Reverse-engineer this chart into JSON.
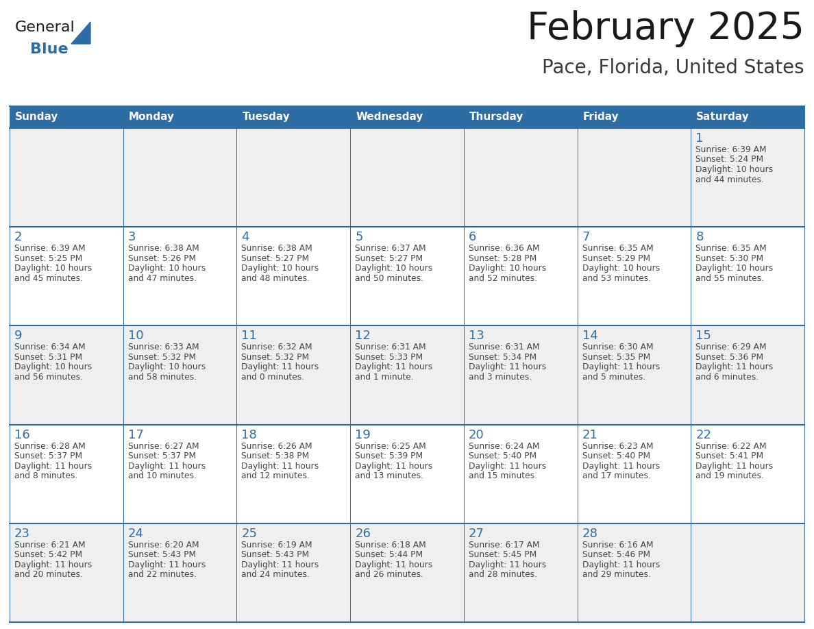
{
  "title": "February 2025",
  "subtitle": "Pace, Florida, United States",
  "days_of_week": [
    "Sunday",
    "Monday",
    "Tuesday",
    "Wednesday",
    "Thursday",
    "Friday",
    "Saturday"
  ],
  "header_bg": "#2E6DA4",
  "header_text": "#FFFFFF",
  "cell_bg_odd": "#EFEFEF",
  "cell_bg_even": "#FFFFFF",
  "day_num_color": "#2E6DA4",
  "text_color": "#444444",
  "line_color": "#2E6DA4",
  "weeks": [
    [
      {
        "day": null,
        "sunrise": null,
        "sunset": null,
        "dl1": null,
        "dl2": null
      },
      {
        "day": null,
        "sunrise": null,
        "sunset": null,
        "dl1": null,
        "dl2": null
      },
      {
        "day": null,
        "sunrise": null,
        "sunset": null,
        "dl1": null,
        "dl2": null
      },
      {
        "day": null,
        "sunrise": null,
        "sunset": null,
        "dl1": null,
        "dl2": null
      },
      {
        "day": null,
        "sunrise": null,
        "sunset": null,
        "dl1": null,
        "dl2": null
      },
      {
        "day": null,
        "sunrise": null,
        "sunset": null,
        "dl1": null,
        "dl2": null
      },
      {
        "day": 1,
        "sunrise": "6:39 AM",
        "sunset": "5:24 PM",
        "dl1": "Daylight: 10 hours",
        "dl2": "and 44 minutes."
      }
    ],
    [
      {
        "day": 2,
        "sunrise": "6:39 AM",
        "sunset": "5:25 PM",
        "dl1": "Daylight: 10 hours",
        "dl2": "and 45 minutes."
      },
      {
        "day": 3,
        "sunrise": "6:38 AM",
        "sunset": "5:26 PM",
        "dl1": "Daylight: 10 hours",
        "dl2": "and 47 minutes."
      },
      {
        "day": 4,
        "sunrise": "6:38 AM",
        "sunset": "5:27 PM",
        "dl1": "Daylight: 10 hours",
        "dl2": "and 48 minutes."
      },
      {
        "day": 5,
        "sunrise": "6:37 AM",
        "sunset": "5:27 PM",
        "dl1": "Daylight: 10 hours",
        "dl2": "and 50 minutes."
      },
      {
        "day": 6,
        "sunrise": "6:36 AM",
        "sunset": "5:28 PM",
        "dl1": "Daylight: 10 hours",
        "dl2": "and 52 minutes."
      },
      {
        "day": 7,
        "sunrise": "6:35 AM",
        "sunset": "5:29 PM",
        "dl1": "Daylight: 10 hours",
        "dl2": "and 53 minutes."
      },
      {
        "day": 8,
        "sunrise": "6:35 AM",
        "sunset": "5:30 PM",
        "dl1": "Daylight: 10 hours",
        "dl2": "and 55 minutes."
      }
    ],
    [
      {
        "day": 9,
        "sunrise": "6:34 AM",
        "sunset": "5:31 PM",
        "dl1": "Daylight: 10 hours",
        "dl2": "and 56 minutes."
      },
      {
        "day": 10,
        "sunrise": "6:33 AM",
        "sunset": "5:32 PM",
        "dl1": "Daylight: 10 hours",
        "dl2": "and 58 minutes."
      },
      {
        "day": 11,
        "sunrise": "6:32 AM",
        "sunset": "5:32 PM",
        "dl1": "Daylight: 11 hours",
        "dl2": "and 0 minutes."
      },
      {
        "day": 12,
        "sunrise": "6:31 AM",
        "sunset": "5:33 PM",
        "dl1": "Daylight: 11 hours",
        "dl2": "and 1 minute."
      },
      {
        "day": 13,
        "sunrise": "6:31 AM",
        "sunset": "5:34 PM",
        "dl1": "Daylight: 11 hours",
        "dl2": "and 3 minutes."
      },
      {
        "day": 14,
        "sunrise": "6:30 AM",
        "sunset": "5:35 PM",
        "dl1": "Daylight: 11 hours",
        "dl2": "and 5 minutes."
      },
      {
        "day": 15,
        "sunrise": "6:29 AM",
        "sunset": "5:36 PM",
        "dl1": "Daylight: 11 hours",
        "dl2": "and 6 minutes."
      }
    ],
    [
      {
        "day": 16,
        "sunrise": "6:28 AM",
        "sunset": "5:37 PM",
        "dl1": "Daylight: 11 hours",
        "dl2": "and 8 minutes."
      },
      {
        "day": 17,
        "sunrise": "6:27 AM",
        "sunset": "5:37 PM",
        "dl1": "Daylight: 11 hours",
        "dl2": "and 10 minutes."
      },
      {
        "day": 18,
        "sunrise": "6:26 AM",
        "sunset": "5:38 PM",
        "dl1": "Daylight: 11 hours",
        "dl2": "and 12 minutes."
      },
      {
        "day": 19,
        "sunrise": "6:25 AM",
        "sunset": "5:39 PM",
        "dl1": "Daylight: 11 hours",
        "dl2": "and 13 minutes."
      },
      {
        "day": 20,
        "sunrise": "6:24 AM",
        "sunset": "5:40 PM",
        "dl1": "Daylight: 11 hours",
        "dl2": "and 15 minutes."
      },
      {
        "day": 21,
        "sunrise": "6:23 AM",
        "sunset": "5:40 PM",
        "dl1": "Daylight: 11 hours",
        "dl2": "and 17 minutes."
      },
      {
        "day": 22,
        "sunrise": "6:22 AM",
        "sunset": "5:41 PM",
        "dl1": "Daylight: 11 hours",
        "dl2": "and 19 minutes."
      }
    ],
    [
      {
        "day": 23,
        "sunrise": "6:21 AM",
        "sunset": "5:42 PM",
        "dl1": "Daylight: 11 hours",
        "dl2": "and 20 minutes."
      },
      {
        "day": 24,
        "sunrise": "6:20 AM",
        "sunset": "5:43 PM",
        "dl1": "Daylight: 11 hours",
        "dl2": "and 22 minutes."
      },
      {
        "day": 25,
        "sunrise": "6:19 AM",
        "sunset": "5:43 PM",
        "dl1": "Daylight: 11 hours",
        "dl2": "and 24 minutes."
      },
      {
        "day": 26,
        "sunrise": "6:18 AM",
        "sunset": "5:44 PM",
        "dl1": "Daylight: 11 hours",
        "dl2": "and 26 minutes."
      },
      {
        "day": 27,
        "sunrise": "6:17 AM",
        "sunset": "5:45 PM",
        "dl1": "Daylight: 11 hours",
        "dl2": "and 28 minutes."
      },
      {
        "day": 28,
        "sunrise": "6:16 AM",
        "sunset": "5:46 PM",
        "dl1": "Daylight: 11 hours",
        "dl2": "and 29 minutes."
      },
      {
        "day": null,
        "sunrise": null,
        "sunset": null,
        "dl1": null,
        "dl2": null
      }
    ]
  ]
}
